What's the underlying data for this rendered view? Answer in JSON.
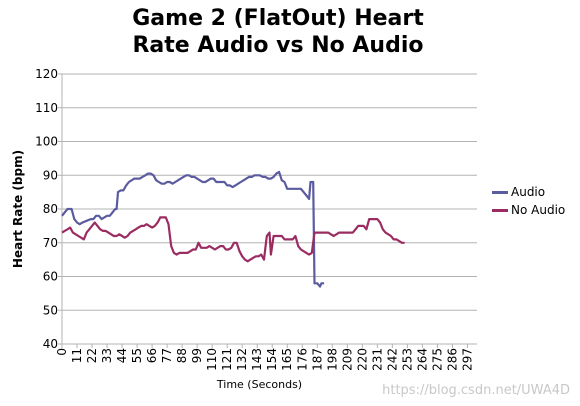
{
  "chart_data": {
    "type": "line",
    "title_lines": [
      "Game 2 (FlatOut) Heart",
      "Rate Audio vs No Audio"
    ],
    "xlabel": "Time (Seconds)",
    "ylabel": "Heart Rate (bpm)",
    "ylim": [
      40,
      120
    ],
    "yticks": [
      40,
      50,
      60,
      70,
      80,
      90,
      100,
      110,
      120
    ],
    "xlim": [
      0,
      304
    ],
    "xticks": [
      0,
      11,
      22,
      33,
      44,
      55,
      66,
      77,
      88,
      99,
      110,
      121,
      132,
      143,
      154,
      165,
      176,
      187,
      198,
      209,
      220,
      231,
      242,
      253,
      264,
      275,
      286,
      297
    ],
    "grid": "horizontal",
    "legend_position": "right",
    "series": [
      {
        "name": "Audio",
        "color": "#5b5b9f",
        "points": [
          [
            0,
            78
          ],
          [
            2,
            79
          ],
          [
            4,
            80
          ],
          [
            7,
            80
          ],
          [
            9,
            77
          ],
          [
            11,
            76
          ],
          [
            13,
            75.5
          ],
          [
            15,
            76
          ],
          [
            18,
            76.5
          ],
          [
            21,
            77
          ],
          [
            23,
            77
          ],
          [
            25,
            78
          ],
          [
            27,
            78
          ],
          [
            29,
            77
          ],
          [
            31,
            77.5
          ],
          [
            33,
            78
          ],
          [
            35,
            78
          ],
          [
            37,
            79
          ],
          [
            39,
            80
          ],
          [
            40,
            80
          ],
          [
            41,
            85
          ],
          [
            43,
            85.5
          ],
          [
            45,
            85.5
          ],
          [
            47,
            87
          ],
          [
            49,
            88
          ],
          [
            51,
            88.5
          ],
          [
            53,
            89
          ],
          [
            55,
            89
          ],
          [
            57,
            89
          ],
          [
            59,
            89.5
          ],
          [
            61,
            90
          ],
          [
            63,
            90.5
          ],
          [
            65,
            90.5
          ],
          [
            67,
            90
          ],
          [
            69,
            88.5
          ],
          [
            71,
            88
          ],
          [
            73,
            87.5
          ],
          [
            75,
            87.5
          ],
          [
            77,
            88
          ],
          [
            79,
            88
          ],
          [
            81,
            87.5
          ],
          [
            83,
            88
          ],
          [
            85,
            88.5
          ],
          [
            87,
            89
          ],
          [
            89,
            89.5
          ],
          [
            91,
            90
          ],
          [
            93,
            90
          ],
          [
            95,
            89.5
          ],
          [
            97,
            89.5
          ],
          [
            99,
            89
          ],
          [
            101,
            88.5
          ],
          [
            103,
            88
          ],
          [
            105,
            88
          ],
          [
            107,
            88.5
          ],
          [
            109,
            89
          ],
          [
            111,
            89
          ],
          [
            113,
            88
          ],
          [
            115,
            88
          ],
          [
            117,
            88
          ],
          [
            119,
            88
          ],
          [
            121,
            87
          ],
          [
            123,
            87
          ],
          [
            125,
            86.5
          ],
          [
            127,
            87
          ],
          [
            129,
            87.5
          ],
          [
            131,
            88
          ],
          [
            133,
            88.5
          ],
          [
            135,
            89
          ],
          [
            137,
            89.5
          ],
          [
            139,
            89.5
          ],
          [
            141,
            90
          ],
          [
            143,
            90
          ],
          [
            145,
            90
          ],
          [
            147,
            89.5
          ],
          [
            149,
            89.5
          ],
          [
            151,
            89
          ],
          [
            153,
            89
          ],
          [
            155,
            89.5
          ],
          [
            157,
            90.5
          ],
          [
            159,
            91
          ],
          [
            161,
            88.5
          ],
          [
            163,
            88
          ],
          [
            165,
            86
          ],
          [
            167,
            86
          ],
          [
            169,
            86
          ],
          [
            171,
            86
          ],
          [
            173,
            86
          ],
          [
            175,
            86
          ],
          [
            177,
            85
          ],
          [
            179,
            84
          ],
          [
            181,
            83
          ],
          [
            182,
            88
          ],
          [
            184,
            88
          ],
          [
            185,
            58
          ],
          [
            187,
            58
          ],
          [
            189,
            57
          ],
          [
            190,
            58
          ],
          [
            192,
            58
          ]
        ]
      },
      {
        "name": "No Audio",
        "color": "#9b2c62",
        "points": [
          [
            0,
            73
          ],
          [
            2,
            73.5
          ],
          [
            4,
            74
          ],
          [
            6,
            74.5
          ],
          [
            8,
            73
          ],
          [
            10,
            72.5
          ],
          [
            12,
            72
          ],
          [
            14,
            71.5
          ],
          [
            16,
            71
          ],
          [
            18,
            73
          ],
          [
            20,
            74
          ],
          [
            22,
            75
          ],
          [
            24,
            76
          ],
          [
            26,
            75
          ],
          [
            28,
            74
          ],
          [
            30,
            73.5
          ],
          [
            32,
            73.5
          ],
          [
            34,
            73
          ],
          [
            36,
            72.5
          ],
          [
            38,
            72
          ],
          [
            40,
            72
          ],
          [
            42,
            72.5
          ],
          [
            44,
            72
          ],
          [
            46,
            71.5
          ],
          [
            48,
            72
          ],
          [
            50,
            73
          ],
          [
            52,
            73.5
          ],
          [
            54,
            74
          ],
          [
            56,
            74.5
          ],
          [
            58,
            75
          ],
          [
            60,
            75
          ],
          [
            62,
            75.5
          ],
          [
            64,
            75
          ],
          [
            66,
            74.5
          ],
          [
            68,
            75
          ],
          [
            70,
            76
          ],
          [
            72,
            77.5
          ],
          [
            74,
            77.5
          ],
          [
            76,
            77.5
          ],
          [
            78,
            75.5
          ],
          [
            80,
            69
          ],
          [
            82,
            67
          ],
          [
            84,
            66.5
          ],
          [
            86,
            67
          ],
          [
            88,
            67
          ],
          [
            90,
            67
          ],
          [
            92,
            67
          ],
          [
            94,
            67.5
          ],
          [
            96,
            68
          ],
          [
            98,
            68
          ],
          [
            100,
            70
          ],
          [
            102,
            68.5
          ],
          [
            104,
            68.5
          ],
          [
            106,
            68.5
          ],
          [
            108,
            69
          ],
          [
            110,
            68.5
          ],
          [
            112,
            68
          ],
          [
            114,
            68.5
          ],
          [
            116,
            69
          ],
          [
            118,
            69
          ],
          [
            120,
            68
          ],
          [
            122,
            68
          ],
          [
            124,
            68.5
          ],
          [
            126,
            70
          ],
          [
            128,
            70
          ],
          [
            130,
            67.5
          ],
          [
            132,
            66
          ],
          [
            134,
            65
          ],
          [
            136,
            64.5
          ],
          [
            138,
            65
          ],
          [
            140,
            65.5
          ],
          [
            142,
            66
          ],
          [
            144,
            66
          ],
          [
            146,
            66.5
          ],
          [
            148,
            65
          ],
          [
            150,
            72
          ],
          [
            152,
            73
          ],
          [
            153,
            66.5
          ],
          [
            155,
            72
          ],
          [
            157,
            72
          ],
          [
            159,
            72
          ],
          [
            161,
            72
          ],
          [
            163,
            71
          ],
          [
            165,
            71
          ],
          [
            167,
            71
          ],
          [
            169,
            71
          ],
          [
            171,
            72
          ],
          [
            173,
            69
          ],
          [
            175,
            68
          ],
          [
            177,
            67.5
          ],
          [
            179,
            67
          ],
          [
            181,
            66.5
          ],
          [
            183,
            67
          ],
          [
            185,
            73
          ],
          [
            187,
            73
          ],
          [
            189,
            73
          ],
          [
            191,
            73
          ],
          [
            193,
            73
          ],
          [
            195,
            73
          ],
          [
            197,
            72.5
          ],
          [
            199,
            72
          ],
          [
            201,
            72.5
          ],
          [
            203,
            73
          ],
          [
            205,
            73
          ],
          [
            207,
            73
          ],
          [
            209,
            73
          ],
          [
            211,
            73
          ],
          [
            213,
            73
          ],
          [
            215,
            74
          ],
          [
            217,
            75
          ],
          [
            219,
            75
          ],
          [
            221,
            75
          ],
          [
            223,
            74
          ],
          [
            225,
            77
          ],
          [
            227,
            77
          ],
          [
            229,
            77
          ],
          [
            231,
            77
          ],
          [
            233,
            76
          ],
          [
            235,
            74
          ],
          [
            237,
            73
          ],
          [
            239,
            72.5
          ],
          [
            241,
            72
          ],
          [
            243,
            71
          ],
          [
            245,
            71
          ],
          [
            247,
            70.5
          ],
          [
            249,
            70
          ],
          [
            251,
            70
          ]
        ]
      }
    ]
  },
  "watermark": "https://blog.csdn.net/UWA4D"
}
